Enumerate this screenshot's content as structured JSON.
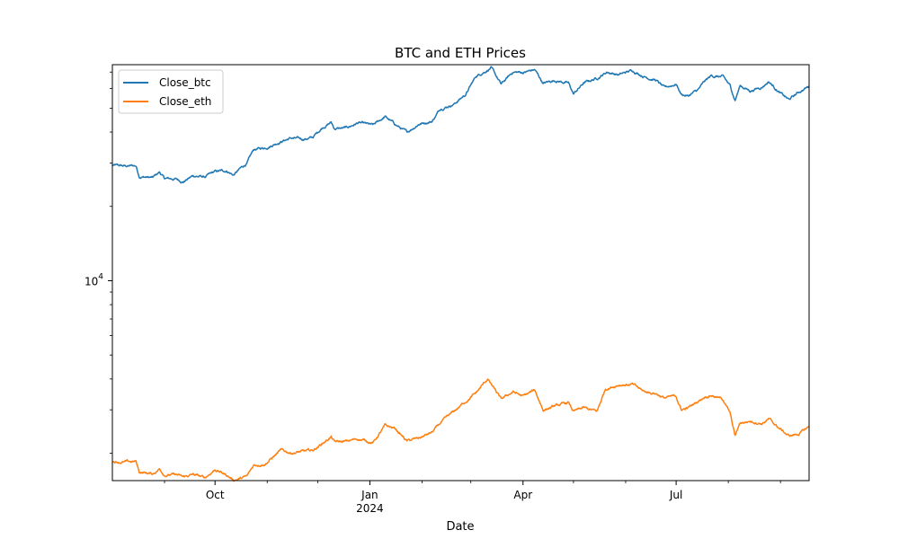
{
  "chart_data": {
    "type": "line",
    "title": "BTC and ETH Prices",
    "xlabel": "Date",
    "ylabel": "",
    "yscale": "log",
    "xlim": [
      "2023-08-01",
      "2024-09-18"
    ],
    "ylim": [
      1550,
      75000
    ],
    "grid": false,
    "legend_position": "top-left",
    "x_ticks": [
      {
        "date": "2023-10-01",
        "label": "Oct"
      },
      {
        "date": "2024-01-01",
        "label": "Jan",
        "sublabel": "2024"
      },
      {
        "date": "2024-04-01",
        "label": "Apr"
      },
      {
        "date": "2024-07-01",
        "label": "Jul"
      }
    ],
    "x_minor_ticks": [
      "2023-09-01",
      "2023-11-01",
      "2023-12-01",
      "2024-02-01",
      "2024-03-01",
      "2024-05-01",
      "2024-06-01",
      "2024-08-01",
      "2024-09-01"
    ],
    "y_major_ticks": [
      {
        "value": 10000,
        "base": "10",
        "exponent": "4"
      }
    ],
    "series": [
      {
        "name": "Close_btc",
        "color": "#1f77b4",
        "points": [
          [
            "2023-08-01",
            29300
          ],
          [
            "2023-08-08",
            29100
          ],
          [
            "2023-08-15",
            29200
          ],
          [
            "2023-08-17",
            26500
          ],
          [
            "2023-08-25",
            26100
          ],
          [
            "2023-08-29",
            27500
          ],
          [
            "2023-09-01",
            25900
          ],
          [
            "2023-09-08",
            25800
          ],
          [
            "2023-09-12",
            25200
          ],
          [
            "2023-09-18",
            26600
          ],
          [
            "2023-09-25",
            26300
          ],
          [
            "2023-10-01",
            27600
          ],
          [
            "2023-10-08",
            27900
          ],
          [
            "2023-10-12",
            26800
          ],
          [
            "2023-10-16",
            28400
          ],
          [
            "2023-10-20",
            29900
          ],
          [
            "2023-10-24",
            33900
          ],
          [
            "2023-10-31",
            34600
          ],
          [
            "2023-11-09",
            36700
          ],
          [
            "2023-11-15",
            37800
          ],
          [
            "2023-11-22",
            37400
          ],
          [
            "2023-11-28",
            38000
          ],
          [
            "2023-12-04",
            41900
          ],
          [
            "2023-12-09",
            43800
          ],
          [
            "2023-12-11",
            41300
          ],
          [
            "2023-12-18",
            41500
          ],
          [
            "2023-12-25",
            43600
          ],
          [
            "2024-01-03",
            42500
          ],
          [
            "2024-01-10",
            46200
          ],
          [
            "2024-01-16",
            43000
          ],
          [
            "2024-01-23",
            39800
          ],
          [
            "2024-01-30",
            43200
          ],
          [
            "2024-02-07",
            44300
          ],
          [
            "2024-02-12",
            49900
          ],
          [
            "2024-02-20",
            52000
          ],
          [
            "2024-02-27",
            56900
          ],
          [
            "2024-03-04",
            67200
          ],
          [
            "2024-03-13",
            73000
          ],
          [
            "2024-03-19",
            62300
          ],
          [
            "2024-03-26",
            70000
          ],
          [
            "2024-04-01",
            69700
          ],
          [
            "2024-04-08",
            71500
          ],
          [
            "2024-04-13",
            63000
          ],
          [
            "2024-04-20",
            64900
          ],
          [
            "2024-04-28",
            63100
          ],
          [
            "2024-05-01",
            57000
          ],
          [
            "2024-05-07",
            63100
          ],
          [
            "2024-05-15",
            66200
          ],
          [
            "2024-05-21",
            70100
          ],
          [
            "2024-05-28",
            68300
          ],
          [
            "2024-06-05",
            71100
          ],
          [
            "2024-06-12",
            67300
          ],
          [
            "2024-06-19",
            65000
          ],
          [
            "2024-06-24",
            60300
          ],
          [
            "2024-07-01",
            62700
          ],
          [
            "2024-07-04",
            57000
          ],
          [
            "2024-07-08",
            56000
          ],
          [
            "2024-07-14",
            59200
          ],
          [
            "2024-07-18",
            64000
          ],
          [
            "2024-07-22",
            67600
          ],
          [
            "2024-07-29",
            66800
          ],
          [
            "2024-08-02",
            61500
          ],
          [
            "2024-08-05",
            53900
          ],
          [
            "2024-08-08",
            61700
          ],
          [
            "2024-08-14",
            58800
          ],
          [
            "2024-08-21",
            61000
          ],
          [
            "2024-08-25",
            64200
          ],
          [
            "2024-09-01",
            57400
          ],
          [
            "2024-09-06",
            54000
          ],
          [
            "2024-09-12",
            58100
          ],
          [
            "2024-09-18",
            61400
          ]
        ]
      },
      {
        "name": "Close_eth",
        "color": "#ff7f0e",
        "points": [
          [
            "2023-08-01",
            1860
          ],
          [
            "2023-08-08",
            1840
          ],
          [
            "2023-08-15",
            1850
          ],
          [
            "2023-08-17",
            1680
          ],
          [
            "2023-08-25",
            1650
          ],
          [
            "2023-08-29",
            1730
          ],
          [
            "2023-09-01",
            1640
          ],
          [
            "2023-09-08",
            1635
          ],
          [
            "2023-09-12",
            1600
          ],
          [
            "2023-09-18",
            1640
          ],
          [
            "2023-09-25",
            1590
          ],
          [
            "2023-10-01",
            1720
          ],
          [
            "2023-10-08",
            1630
          ],
          [
            "2023-10-12",
            1560
          ],
          [
            "2023-10-16",
            1580
          ],
          [
            "2023-10-20",
            1610
          ],
          [
            "2023-10-24",
            1790
          ],
          [
            "2023-10-31",
            1820
          ],
          [
            "2023-11-09",
            2050
          ],
          [
            "2023-11-15",
            2010
          ],
          [
            "2023-11-22",
            2030
          ],
          [
            "2023-11-28",
            2050
          ],
          [
            "2023-12-04",
            2200
          ],
          [
            "2023-12-09",
            2330
          ],
          [
            "2023-12-11",
            2220
          ],
          [
            "2023-12-18",
            2230
          ],
          [
            "2023-12-25",
            2290
          ],
          [
            "2024-01-03",
            2210
          ],
          [
            "2024-01-10",
            2580
          ],
          [
            "2024-01-16",
            2520
          ],
          [
            "2024-01-23",
            2240
          ],
          [
            "2024-01-30",
            2300
          ],
          [
            "2024-02-07",
            2430
          ],
          [
            "2024-02-12",
            2650
          ],
          [
            "2024-02-20",
            2950
          ],
          [
            "2024-02-27",
            3250
          ],
          [
            "2024-03-04",
            3500
          ],
          [
            "2024-03-11",
            4000
          ],
          [
            "2024-03-19",
            3300
          ],
          [
            "2024-03-26",
            3550
          ],
          [
            "2024-04-01",
            3400
          ],
          [
            "2024-04-08",
            3600
          ],
          [
            "2024-04-13",
            3000
          ],
          [
            "2024-04-20",
            3100
          ],
          [
            "2024-04-28",
            3200
          ],
          [
            "2024-05-01",
            2950
          ],
          [
            "2024-05-07",
            3050
          ],
          [
            "2024-05-15",
            2950
          ],
          [
            "2024-05-20",
            3650
          ],
          [
            "2024-05-28",
            3800
          ],
          [
            "2024-06-05",
            3800
          ],
          [
            "2024-06-12",
            3550
          ],
          [
            "2024-06-19",
            3500
          ],
          [
            "2024-06-24",
            3350
          ],
          [
            "2024-07-01",
            3400
          ],
          [
            "2024-07-04",
            3000
          ],
          [
            "2024-07-08",
            3050
          ],
          [
            "2024-07-14",
            3250
          ],
          [
            "2024-07-18",
            3400
          ],
          [
            "2024-07-22",
            3450
          ],
          [
            "2024-07-29",
            3300
          ],
          [
            "2024-08-02",
            2900
          ],
          [
            "2024-08-05",
            2350
          ],
          [
            "2024-08-08",
            2650
          ],
          [
            "2024-08-14",
            2700
          ],
          [
            "2024-08-21",
            2650
          ],
          [
            "2024-08-25",
            2750
          ],
          [
            "2024-09-01",
            2500
          ],
          [
            "2024-09-06",
            2350
          ],
          [
            "2024-09-12",
            2400
          ],
          [
            "2024-09-18",
            2560
          ]
        ]
      }
    ]
  }
}
